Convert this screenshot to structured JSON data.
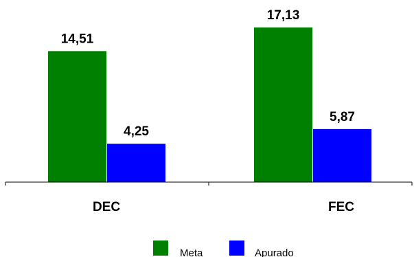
{
  "chart_data": {
    "type": "bar",
    "categories": [
      "DEC",
      "FEC"
    ],
    "series": [
      {
        "name": "Meta",
        "values": [
          14.51,
          17.13
        ],
        "labels": [
          "14,51",
          "17,13"
        ],
        "color": "#008000"
      },
      {
        "name": "Apurado",
        "values": [
          4.25,
          5.87
        ],
        "labels": [
          "4,25",
          "5,87"
        ],
        "color": "#0000FF"
      }
    ],
    "title": "",
    "xlabel": "",
    "ylabel": "",
    "ylim": [
      0,
      18.8
    ],
    "grid": false,
    "legend_position": "bottom"
  }
}
